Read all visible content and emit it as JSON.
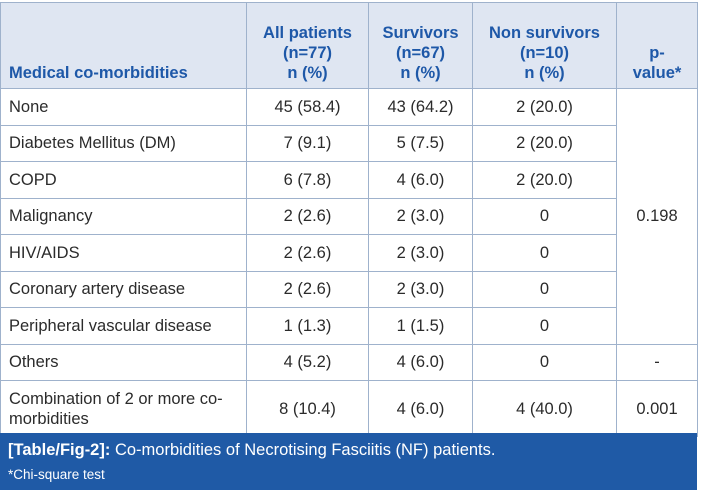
{
  "table": {
    "headers": {
      "col1": "Medical co-morbidities",
      "col2": [
        "All patients",
        "(n=77)",
        "n (%)"
      ],
      "col3": [
        "Survivors",
        "(n=67)",
        "n (%)"
      ],
      "col4": [
        "Non survivors",
        "(n=10)",
        "n (%)"
      ],
      "col5": [
        "p-",
        "value*"
      ]
    },
    "rows": [
      {
        "label": "None",
        "all": "45 (58.4)",
        "surv": "43 (64.2)",
        "non": "2 (20.0)"
      },
      {
        "label": "Diabetes Mellitus (DM)",
        "all": "7 (9.1)",
        "surv": "5 (7.5)",
        "non": "2 (20.0)"
      },
      {
        "label": "COPD",
        "all": "6 (7.8)",
        "surv": "4 (6.0)",
        "non": "2 (20.0)"
      },
      {
        "label": "Malignancy",
        "all": "2 (2.6)",
        "surv": "2 (3.0)",
        "non": "0"
      },
      {
        "label": "HIV/AIDS",
        "all": "2 (2.6)",
        "surv": "2 (3.0)",
        "non": "0"
      },
      {
        "label": "Coronary artery disease",
        "all": "2 (2.6)",
        "surv": "2 (3.0)",
        "non": "0"
      },
      {
        "label": "Peripheral vascular disease",
        "all": "1 (1.3)",
        "surv": "1 (1.5)",
        "non": "0"
      },
      {
        "label": "Others",
        "all": "4 (5.2)",
        "surv": "4 (6.0)",
        "non": "0"
      },
      {
        "label": "Combination of 2 or more co-morbidities",
        "all": "8 (10.4)",
        "surv": "4 (6.0)",
        "non": "4 (40.0)"
      }
    ],
    "p_values": {
      "group": "0.198",
      "others": "-",
      "combination": "0.001"
    }
  },
  "caption": {
    "label": "[Table/Fig-2]:",
    "text": " Co-morbidities of Necrotising Fasciitis (NF) patients.",
    "note": "*Chi-square test"
  },
  "colors": {
    "header_bg": "#dfe6f2",
    "header_text": "#1e58a8",
    "caption_bg": "#1f5aa6",
    "border": "#9fb2cc"
  }
}
